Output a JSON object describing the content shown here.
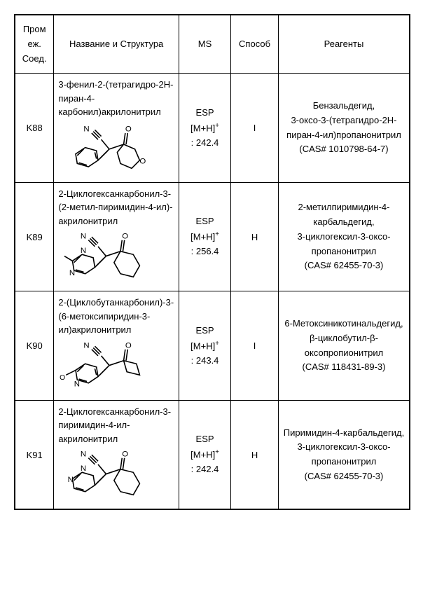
{
  "headers": {
    "id": "Пром\nеж.\nСоед.",
    "name_struct": "Название и Структура",
    "ms": "MS",
    "method": "Способ",
    "reagents": "Реагенты"
  },
  "rows": [
    {
      "id": "K88",
      "name": "3-фенил-2-(тетрагидро-2H-пиран-4-карбонил)акрилонитрил",
      "ms_prefix": "ESP",
      "ms_ion": "[M+H]",
      "ms_val": ": 242.4",
      "method": "I",
      "reagents": "Бензальдегид,\n3-оксо-3-(тетрагидро-2H-пиран-4-ил)пропанонитрил\n(CAS# 1010798-64-7)",
      "struct_type": "k88"
    },
    {
      "id": "K89",
      "name": "2-Циклогексанкарбонил-3-(2-метил-пиримидин-4-ил)-акрилонитрил",
      "ms_prefix": "ESP",
      "ms_ion": "[M+H]",
      "ms_val": ": 256.4",
      "method": "H",
      "reagents": "2-метилпиримидин-4-карбальдегид,\n3-циклогексил-3-оксо-пропанонитрил\n(CAS# 62455-70-3)",
      "struct_type": "k89"
    },
    {
      "id": "K90",
      "name": "2-(Циклобутанкарбонил)-3-(6-метоксипиридин-3-ил)акрилонитрил",
      "ms_prefix": "ESP",
      "ms_ion": "[M+H]",
      "ms_val": ": 243.4",
      "method": "I",
      "reagents": "6-Метоксиникотинальдегид,\nβ-циклобутил-β-оксопропионитрил\n(CAS# 118431-89-3)",
      "struct_type": "k90"
    },
    {
      "id": "K91",
      "name": "2-Циклогексанкарбонил-3-пиримидин-4-ил-акрилонитрил",
      "ms_prefix": "ESP",
      "ms_ion": "[M+H]",
      "ms_val": ": 242.4",
      "method": "H",
      "reagents": "Пиримидин-4-карбальдегид,\n3-циклогексил-3-оксо-пропанонитрил\n(CAS# 62455-70-3)",
      "struct_type": "k91"
    }
  ],
  "struct_styles": {
    "stroke": "#000000",
    "stroke_width": 1.4,
    "font_family": "Arial",
    "font_size": 10
  }
}
